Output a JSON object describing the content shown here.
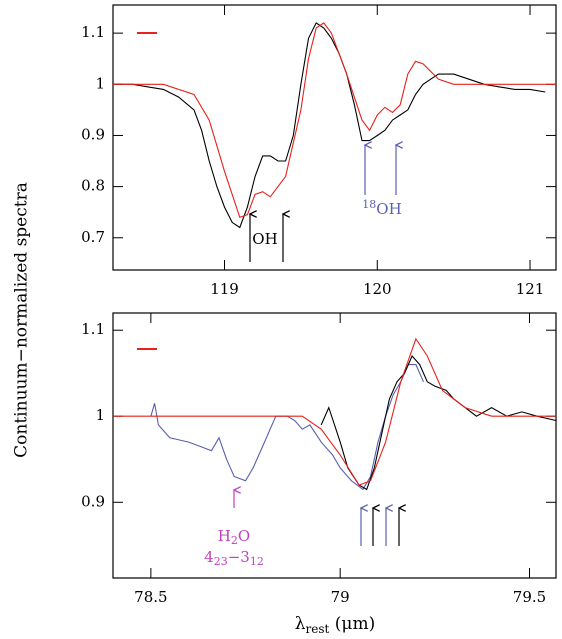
{
  "chart_data": [
    {
      "type": "line",
      "ylabel": "Continuum−normalized spectra",
      "xlim": [
        118.27,
        121.17
      ],
      "ylim": [
        0.637,
        1.155
      ],
      "xticks": [
        119,
        120,
        121
      ],
      "yticks": [
        0.7,
        0.8,
        0.9,
        1,
        1.1
      ],
      "annotations": [
        [
          "OH"
        ],
        [
          "18",
          "OH"
        ]
      ],
      "series": [
        {
          "color": "#000000",
          "x": [
            118.27,
            118.4,
            118.5,
            118.6,
            118.7,
            118.8,
            118.85,
            118.9,
            118.95,
            119.0,
            119.05,
            119.1,
            119.15,
            119.2,
            119.25,
            119.3,
            119.35,
            119.4,
            119.45,
            119.5,
            119.55,
            119.6,
            119.65,
            119.7,
            119.75,
            119.8,
            119.85,
            119.9,
            119.95,
            120.0,
            120.05,
            120.1,
            120.15,
            120.2,
            120.25,
            120.3,
            120.35,
            120.4,
            120.5,
            120.6,
            120.7,
            120.8,
            120.9,
            121.0,
            121.1
          ],
          "values": [
            1.0,
            1.0,
            0.995,
            0.99,
            0.975,
            0.95,
            0.91,
            0.85,
            0.8,
            0.76,
            0.73,
            0.72,
            0.76,
            0.82,
            0.86,
            0.86,
            0.85,
            0.85,
            0.9,
            1.0,
            1.09,
            1.12,
            1.11,
            1.09,
            1.06,
            1.02,
            0.96,
            0.89,
            0.89,
            0.9,
            0.91,
            0.93,
            0.94,
            0.95,
            0.98,
            1.0,
            1.01,
            1.02,
            1.02,
            1.01,
            1.0,
            0.995,
            0.99,
            0.99,
            0.985
          ]
        },
        {
          "color": "#e8211a",
          "x": [
            118.27,
            118.6,
            118.8,
            118.9,
            119.0,
            119.1,
            119.15,
            119.2,
            119.25,
            119.3,
            119.4,
            119.5,
            119.55,
            119.6,
            119.65,
            119.7,
            119.8,
            119.9,
            119.95,
            120.0,
            120.05,
            120.1,
            120.15,
            120.2,
            120.25,
            120.3,
            120.4,
            120.5,
            121.17
          ],
          "values": [
            1.0,
            1.0,
            0.98,
            0.93,
            0.83,
            0.74,
            0.745,
            0.785,
            0.79,
            0.78,
            0.82,
            0.95,
            1.05,
            1.11,
            1.12,
            1.1,
            1.02,
            0.93,
            0.91,
            0.94,
            0.955,
            0.945,
            0.96,
            1.02,
            1.045,
            1.04,
            1.01,
            1.0,
            1.0
          ]
        }
      ]
    },
    {
      "type": "line",
      "xlabel": [
        "λ",
        "rest",
        " (μm)"
      ],
      "xlim": [
        78.4,
        79.57
      ],
      "ylim": [
        0.812,
        1.12
      ],
      "xticks": [
        78.5,
        79,
        79.5
      ],
      "yticks": [
        0.9,
        1,
        1.1
      ],
      "annotations": [
        [
          "H",
          "2",
          "O"
        ],
        [
          "4",
          "23",
          "−3",
          "12"
        ]
      ],
      "series": [
        {
          "color": "#5a5fb0",
          "x": [
            78.5,
            78.51,
            78.52,
            78.55,
            78.6,
            78.63,
            78.66,
            78.68,
            78.7,
            78.72,
            78.75,
            78.77,
            78.8,
            78.83,
            78.86,
            78.88,
            78.9,
            78.92,
            78.95,
            78.98,
            79.0,
            79.03,
            79.06,
            79.08,
            79.1,
            79.12,
            79.14,
            79.16,
            79.18,
            79.2,
            79.22
          ],
          "values": [
            1.0,
            1.015,
            0.99,
            0.975,
            0.97,
            0.965,
            0.96,
            0.975,
            0.95,
            0.93,
            0.925,
            0.94,
            0.97,
            1.0,
            1.0,
            0.995,
            0.985,
            0.99,
            0.97,
            0.955,
            0.94,
            0.925,
            0.915,
            0.93,
            0.97,
            1.0,
            1.025,
            1.04,
            1.06,
            1.06,
            1.04
          ]
        },
        {
          "color": "#000000",
          "x": [
            78.95,
            78.97,
            79.0,
            79.02,
            79.05,
            79.07,
            79.09,
            79.11,
            79.13,
            79.15,
            79.17,
            79.19,
            79.21,
            79.23,
            79.25,
            79.28,
            79.3,
            79.33,
            79.36,
            79.4,
            79.44,
            79.48,
            79.52,
            79.57
          ],
          "values": [
            0.99,
            1.01,
            0.97,
            0.94,
            0.92,
            0.915,
            0.94,
            0.98,
            1.02,
            1.04,
            1.05,
            1.07,
            1.06,
            1.04,
            1.035,
            1.03,
            1.02,
            1.01,
            1.0,
            1.01,
            1.0,
            1.005,
            1.0,
            0.995
          ]
        },
        {
          "color": "#e8211a",
          "x": [
            78.4,
            78.9,
            78.95,
            79.0,
            79.05,
            79.08,
            79.12,
            79.16,
            79.2,
            79.23,
            79.27,
            79.33,
            79.4,
            79.57
          ],
          "values": [
            1.0,
            1.0,
            0.985,
            0.955,
            0.92,
            0.925,
            0.97,
            1.04,
            1.09,
            1.07,
            1.03,
            1.01,
            1.0,
            1.0
          ]
        }
      ]
    }
  ]
}
